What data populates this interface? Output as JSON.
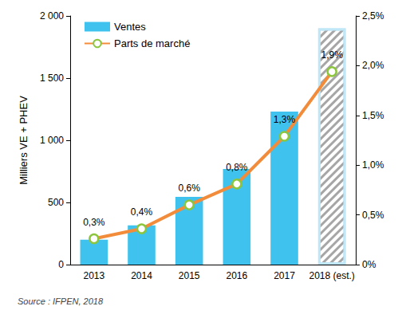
{
  "chart_data": {
    "type": "bar",
    "categories": [
      "2013",
      "2014",
      "2015",
      "2016",
      "2017",
      "2018 (est.)"
    ],
    "series": [
      {
        "name": "Ventes",
        "type": "bar",
        "color": "#3fc3ee",
        "colors": [
          "#3fc3ee",
          "#3fc3ee",
          "#3fc3ee",
          "#3fc3ee",
          "#3fc3ee",
          "#a6a6a6"
        ],
        "values": [
          200,
          315,
          545,
          770,
          1230,
          1900
        ]
      },
      {
        "name": "Parts de marché",
        "type": "line",
        "axis": "y2",
        "color": "#f28c3a",
        "marker": "circle",
        "values": [
          0.26,
          0.36,
          0.6,
          0.81,
          1.29,
          1.94
        ],
        "value_labels": [
          "0,3%",
          "0,4%",
          "0,6%",
          "0,8%",
          "1,3%",
          "1,9%"
        ]
      }
    ],
    "ylabel": "Milliers VE + PHEV",
    "ylim": [
      0,
      2000
    ],
    "yticks": [
      0,
      500,
      {
        "value": 1000,
        "label": "1 000"
      },
      {
        "value": 1500,
        "label": "1 500"
      },
      {
        "value": 2000,
        "label": "2 000"
      }
    ],
    "y2lim": [
      0,
      2.5
    ],
    "y2ticks": [
      {
        "value": 0,
        "label": "0%"
      },
      {
        "value": 0.5,
        "label": "0,5%"
      },
      {
        "value": 1,
        "label": "1,0%"
      },
      {
        "value": 1.5,
        "label": "1,5%"
      },
      {
        "value": 2,
        "label": "2,0%"
      },
      {
        "value": 2.5,
        "label": "2,5%"
      }
    ],
    "data_labels": true,
    "grid": false,
    "legend": "upper left",
    "annotations": [
      "Source : IFPEN, 2018"
    ]
  }
}
